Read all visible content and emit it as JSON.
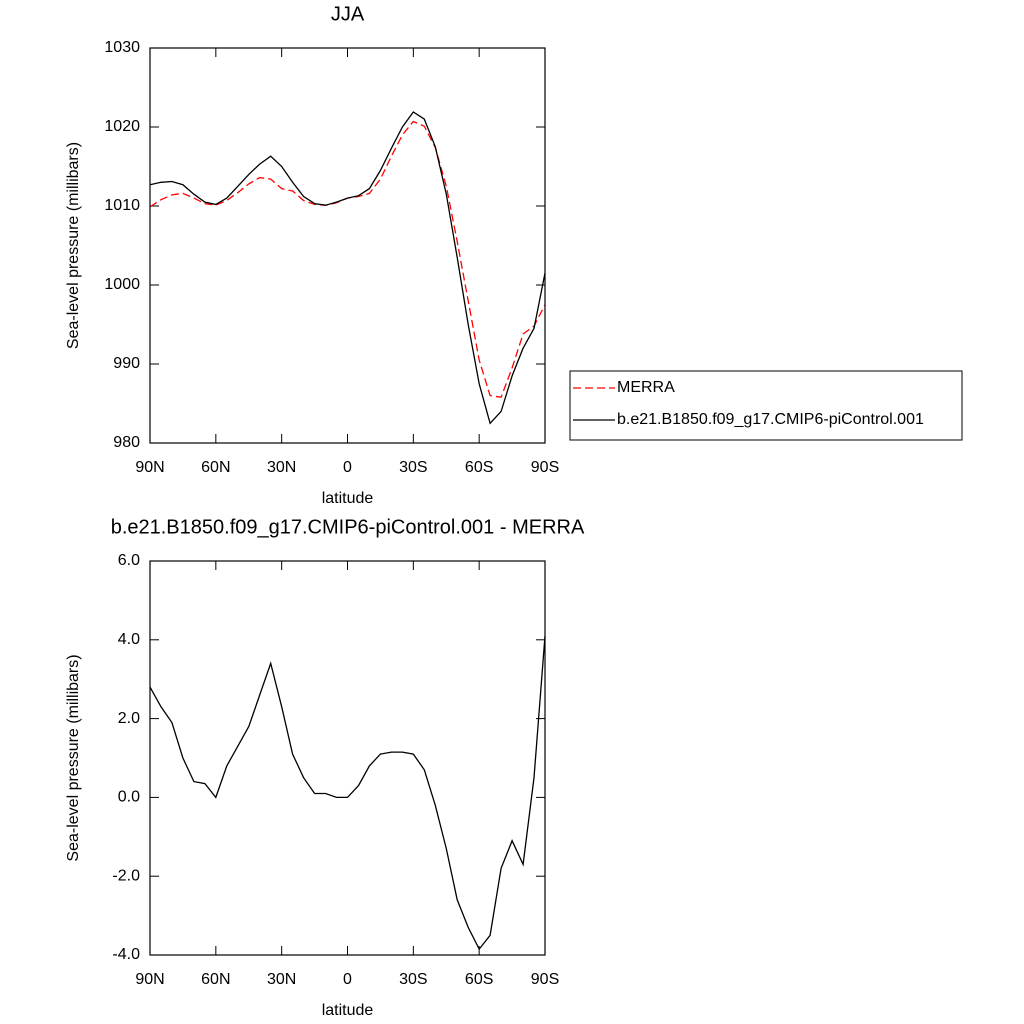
{
  "chart_data": [
    {
      "type": "line",
      "title": "JJA",
      "xlabel": "latitude",
      "ylabel": "Sea-level pressure (millibars)",
      "x": [
        90,
        85,
        80,
        75,
        70,
        65,
        60,
        55,
        50,
        45,
        40,
        35,
        30,
        25,
        20,
        15,
        10,
        5,
        0,
        -5,
        -10,
        -15,
        -20,
        -25,
        -30,
        -35,
        -40,
        -45,
        -50,
        -55,
        -60,
        -65,
        -70,
        -75,
        -80,
        -85,
        -90
      ],
      "series": [
        {
          "name": "MERRA",
          "color": "#ff0000",
          "dash": "dashed",
          "values": [
            1009.9,
            1010.8,
            1011.4,
            1011.6,
            1011.0,
            1010.3,
            1010.1,
            1010.7,
            1011.7,
            1012.8,
            1013.6,
            1013.4,
            1012.2,
            1011.9,
            1010.7,
            1010.2,
            1010.1,
            1010.4,
            1011.0,
            1011.2,
            1011.6,
            1013.4,
            1016.3,
            1019.0,
            1020.7,
            1020.1,
            1017.4,
            1012.5,
            1005.5,
            998.0,
            990.5,
            986.0,
            985.8,
            989.5,
            993.8,
            994.8,
            997.5
          ]
        },
        {
          "name": "b.e21.B1850.f09_g17.CMIP6-piControl.001",
          "color": "#000000",
          "dash": "solid",
          "values": [
            1012.7,
            1013.0,
            1013.1,
            1012.7,
            1011.5,
            1010.5,
            1010.2,
            1011.0,
            1012.5,
            1014.0,
            1015.3,
            1016.3,
            1015.0,
            1013.0,
            1011.2,
            1010.3,
            1010.1,
            1010.5,
            1011.0,
            1011.3,
            1012.2,
            1014.5,
            1017.3,
            1020.0,
            1021.9,
            1021.0,
            1017.5,
            1011.5,
            1003.5,
            995.0,
            987.5,
            982.5,
            984.0,
            988.5,
            992.0,
            994.5,
            1001.5
          ]
        }
      ],
      "xlim": [
        90,
        -90
      ],
      "xticks": [
        {
          "value": 90,
          "label": "90N"
        },
        {
          "value": 60,
          "label": "60N"
        },
        {
          "value": 30,
          "label": "30N"
        },
        0,
        {
          "value": -30,
          "label": "30S"
        },
        {
          "value": -60,
          "label": "60S"
        },
        {
          "value": -90,
          "label": "90S"
        }
      ],
      "ylim": [
        980,
        1030
      ],
      "yticks": [
        980,
        990,
        1000,
        1010,
        1020,
        1030
      ],
      "legend": "right"
    },
    {
      "type": "line",
      "title": "b.e21.B1850.f09_g17.CMIP6-piControl.001 - MERRA",
      "xlabel": "latitude",
      "ylabel": "Sea-level pressure (millibars)",
      "x": [
        90,
        85,
        80,
        75,
        70,
        65,
        60,
        55,
        50,
        45,
        40,
        35,
        30,
        25,
        20,
        15,
        10,
        5,
        0,
        -5,
        -10,
        -15,
        -20,
        -25,
        -30,
        -35,
        -40,
        -45,
        -50,
        -55,
        -60,
        -65,
        -70,
        -75,
        -80,
        -85,
        -90
      ],
      "series": [
        {
          "color": "#000000",
          "dash": "solid",
          "values": [
            2.8,
            2.3,
            1.9,
            1.0,
            0.4,
            0.35,
            0.0,
            0.8,
            1.3,
            1.8,
            2.6,
            3.4,
            2.3,
            1.1,
            0.5,
            0.1,
            0.1,
            0.0,
            0.0,
            0.3,
            0.8,
            1.1,
            1.15,
            1.15,
            1.1,
            0.7,
            -0.2,
            -1.3,
            -2.6,
            -3.3,
            -3.85,
            -3.5,
            -1.8,
            -1.1,
            -1.7,
            0.5,
            4.1
          ]
        }
      ],
      "xlim": [
        90,
        -90
      ],
      "xticks": [
        {
          "value": 90,
          "label": "90N"
        },
        {
          "value": 60,
          "label": "60N"
        },
        {
          "value": 30,
          "label": "30N"
        },
        0,
        {
          "value": -30,
          "label": "30S"
        },
        {
          "value": -60,
          "label": "60S"
        },
        {
          "value": -90,
          "label": "90S"
        }
      ],
      "ylim": [
        -4,
        6
      ],
      "yticks": [
        {
          "value": -4,
          "label": "-4.0"
        },
        {
          "value": -2,
          "label": "-2.0"
        },
        {
          "value": 0,
          "label": "0.0"
        },
        {
          "value": 2,
          "label": "2.0"
        },
        {
          "value": 4,
          "label": "4.0"
        },
        {
          "value": 6,
          "label": "6.0"
        }
      ]
    }
  ]
}
